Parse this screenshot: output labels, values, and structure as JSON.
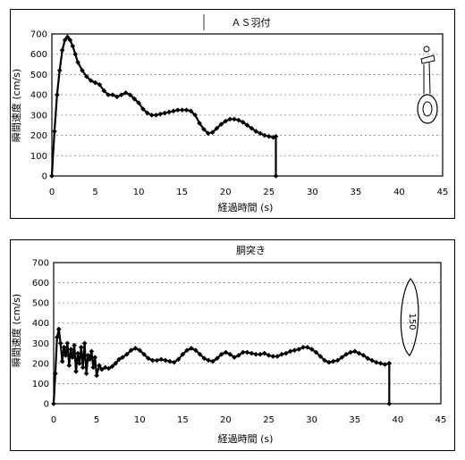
{
  "chart_data": [
    {
      "type": "line",
      "title": "ＡＳ羽付",
      "xlabel": "経過時間 (s)",
      "ylabel": "瞬間速度 (cm/s)",
      "xlim": [
        0,
        45
      ],
      "ylim": [
        0,
        700
      ],
      "xticks": [
        0,
        5,
        10,
        15,
        20,
        25,
        30,
        35,
        40,
        45
      ],
      "yticks": [
        0,
        100,
        200,
        300,
        400,
        500,
        600,
        700
      ],
      "grid": "horizontal-dashed",
      "legend": "none",
      "inset_label": "",
      "series": [
        {
          "x": [
            0,
            0.3,
            0.6,
            0.9,
            1.2,
            1.5,
            1.8,
            2.1,
            2.4,
            2.7,
            3,
            3.5,
            4,
            4.5,
            5,
            5.5,
            6,
            6.5,
            7,
            7.5,
            8,
            8.5,
            9,
            9.5,
            10,
            10.5,
            11,
            11.5,
            12,
            12.5,
            13,
            13.5,
            14,
            14.5,
            15,
            15.5,
            16,
            16.5,
            17,
            17.5,
            18,
            18.5,
            19,
            19.5,
            20,
            20.5,
            21,
            21.5,
            22,
            22.5,
            23,
            23.5,
            24,
            24.5,
            25,
            25.5,
            25.8,
            25.8
          ],
          "y": [
            0,
            220,
            400,
            520,
            620,
            670,
            685,
            670,
            640,
            600,
            560,
            520,
            490,
            470,
            460,
            450,
            420,
            400,
            400,
            390,
            400,
            410,
            400,
            380,
            360,
            330,
            310,
            300,
            300,
            305,
            310,
            315,
            320,
            325,
            325,
            325,
            320,
            300,
            260,
            230,
            210,
            215,
            235,
            255,
            270,
            280,
            280,
            275,
            265,
            250,
            235,
            220,
            210,
            200,
            195,
            190,
            195,
            0
          ]
        }
      ]
    },
    {
      "type": "line",
      "title": "胴突き",
      "xlabel": "経過時間 (s)",
      "ylabel": "瞬間速度 (cm/s)",
      "xlim": [
        0,
        45
      ],
      "ylim": [
        0,
        700
      ],
      "xticks": [
        0,
        5,
        10,
        15,
        20,
        25,
        30,
        35,
        40,
        45
      ],
      "yticks": [
        0,
        100,
        200,
        300,
        400,
        500,
        600,
        700
      ],
      "grid": "horizontal-dashed",
      "legend": "none",
      "inset_label": "150",
      "series": [
        {
          "x": [
            0,
            0.2,
            0.4,
            0.6,
            0.8,
            1,
            1.2,
            1.4,
            1.6,
            1.8,
            2,
            2.2,
            2.4,
            2.6,
            2.8,
            3,
            3.2,
            3.4,
            3.6,
            3.8,
            4,
            4.2,
            4.4,
            4.6,
            4.8,
            5,
            5.3,
            5.6,
            6,
            6.4,
            6.8,
            7.2,
            7.6,
            8,
            8.5,
            9,
            9.5,
            10,
            10.5,
            11,
            11.5,
            12,
            12.5,
            13,
            13.5,
            14,
            14.5,
            15,
            15.5,
            16,
            16.5,
            17,
            17.5,
            18,
            18.5,
            19,
            19.5,
            20,
            20.5,
            21,
            21.5,
            22,
            22.5,
            23,
            23.5,
            24,
            24.5,
            25,
            25.5,
            26,
            26.5,
            27,
            27.5,
            28,
            28.5,
            29,
            29.5,
            30,
            30.5,
            31,
            31.5,
            32,
            32.5,
            33,
            33.5,
            34,
            34.5,
            35,
            35.5,
            36,
            36.5,
            37,
            37.5,
            38,
            38.5,
            39,
            39,
            39
          ],
          "y": [
            0,
            150,
            330,
            370,
            300,
            210,
            280,
            240,
            300,
            190,
            270,
            230,
            290,
            160,
            250,
            200,
            280,
            180,
            300,
            150,
            240,
            220,
            260,
            180,
            230,
            140,
            190,
            170,
            180,
            175,
            185,
            200,
            220,
            230,
            245,
            265,
            275,
            265,
            245,
            225,
            215,
            215,
            220,
            215,
            210,
            205,
            220,
            245,
            265,
            275,
            265,
            245,
            225,
            215,
            210,
            225,
            245,
            255,
            245,
            230,
            240,
            255,
            255,
            250,
            245,
            245,
            250,
            240,
            235,
            235,
            245,
            250,
            260,
            265,
            270,
            280,
            280,
            270,
            255,
            235,
            215,
            205,
            210,
            215,
            230,
            245,
            255,
            260,
            250,
            240,
            225,
            215,
            205,
            200,
            195,
            200,
            200,
            0
          ]
        }
      ]
    }
  ]
}
